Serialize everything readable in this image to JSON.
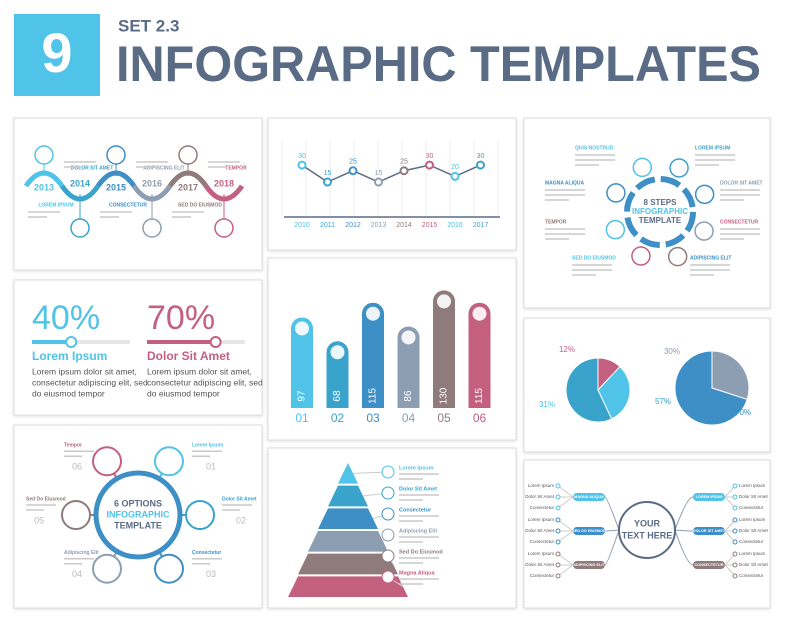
{
  "header": {
    "number": "9",
    "set": "SET 2.3",
    "title": "INFOGRAPHIC TEMPLATES"
  },
  "timeline": {
    "years": [
      "2013",
      "2014",
      "2015",
      "2016",
      "2017",
      "2018"
    ],
    "labels": [
      "LOREM IPSUM",
      "DOLOR SIT AMET",
      "CONSECTETUR",
      "ADIPISCING ELIT",
      "SED DO EIUSMOD",
      "TEMPOR"
    ]
  },
  "line_chart": {
    "x": [
      "2010",
      "2011",
      "2012",
      "2013",
      "2014",
      "2015",
      "2016",
      "2017"
    ],
    "values": [
      30,
      15,
      25,
      15,
      25,
      30,
      20,
      30
    ]
  },
  "steps": {
    "center": [
      "8 STEPS",
      "INFOGRAPHIC",
      "TEMPLATE"
    ],
    "labels": [
      "QUIS NOSTRUD",
      "LOREM IPSUM",
      "MAGNA ALIQUA",
      "DOLOR SIT AMET",
      "TEMPOR",
      "CONSECTETUR",
      "SED DO EIUSMOD",
      "ADIPISCING ELIT"
    ]
  },
  "percentages": [
    {
      "value": {
        "value": 40,
        "label": "40%"
      },
      "title": "Lorem Ipsum",
      "body": [
        "Lorem ipsum dolor sit amet,",
        "consectetur adipiscing elit, sed",
        "do eiusmod tempor"
      ]
    },
    {
      "value": {
        "value": 70,
        "label": "70%"
      },
      "title": "Dolor Sit Amet",
      "body": [
        "Lorem ipsum dolor sit amet,",
        "consectetur adipiscing elit, sed",
        "do eiusmod tempor"
      ]
    }
  ],
  "bar_chart": {
    "categories": [
      "01",
      "02",
      "03",
      "04",
      "05",
      "06"
    ],
    "values": [
      97,
      68,
      115,
      86,
      130,
      115
    ],
    "colors": [
      "#4fc3e8",
      "#3aa3cc",
      "#3d8fc6",
      "#8d9db2",
      "#8f7b7b",
      "#c4607f"
    ]
  },
  "pies": [
    {
      "values": [
        12,
        31,
        57
      ],
      "value_labels": [
        "12%",
        "31%",
        "57%"
      ],
      "colors": [
        "#c4607f",
        "#4fc3e8",
        "#3aa3cc"
      ]
    },
    {
      "values": [
        30,
        70
      ],
      "value_labels": [
        "30%",
        "70%"
      ],
      "colors": [
        "#8d9db2",
        "#3d8fc6"
      ]
    }
  ],
  "options": {
    "center": [
      "6 OPTIONS",
      "INFOGRAPHIC",
      "TEMPLATE"
    ],
    "items": [
      {
        "label": "Lorem Ipsum",
        "number": "01"
      },
      {
        "label": "Dolor Sit Amet",
        "number": "02"
      },
      {
        "label": "Consectetur",
        "number": "03"
      },
      {
        "label": "Adipiscing Elit",
        "number": "04"
      },
      {
        "label": "Sed Do Eiusmod",
        "number": "05"
      },
      {
        "label": "Tempor",
        "number": "06"
      }
    ]
  },
  "pyramid": {
    "labels": [
      "Lorem Ipsum",
      "Dolor Sit Amet",
      "Consectetur",
      "Adipiscing Elit",
      "Sed Do Eiusmod",
      "Magna Aliqua"
    ]
  },
  "mindmap": {
    "center": [
      "YOUR",
      "TEXT HERE"
    ],
    "branches": [
      "MAGNA ALIQUA",
      "SED DO EIUSMOD",
      "ADIPISCING ELIT",
      "LOREM IPSUM",
      "DOLOR SIT AMET",
      "CONSECTETUR"
    ],
    "leaves": [
      "Lorem Ipsum",
      "Dolor Sit Amet",
      "Consectetur"
    ]
  }
}
